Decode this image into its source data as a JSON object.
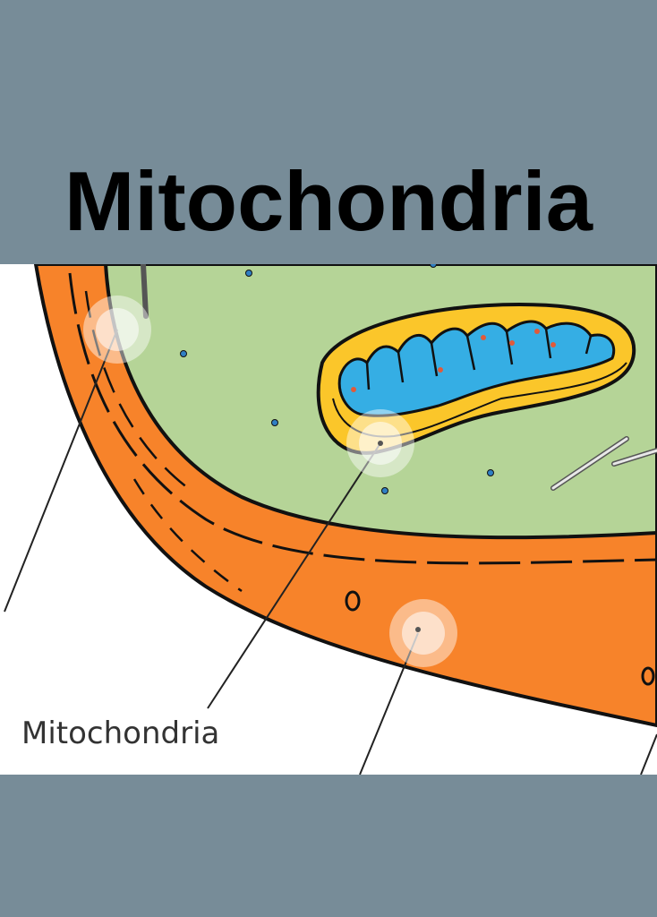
{
  "title": "Mitochondria",
  "diagram": {
    "label": "Mitochondria",
    "colors": {
      "cytoplasm": "#b5d497",
      "cell_wall": "#f7832a",
      "outer_membrane": "#fbc62a",
      "cristae": "#35aee4",
      "background": "#ffffff",
      "hotspot": "#ffffff"
    },
    "hotspots": [
      "cell-membrane-hotspot",
      "mitochondria-hotspot",
      "cell-wall-hotspot"
    ]
  },
  "theme": {
    "frame": "#778c98"
  }
}
